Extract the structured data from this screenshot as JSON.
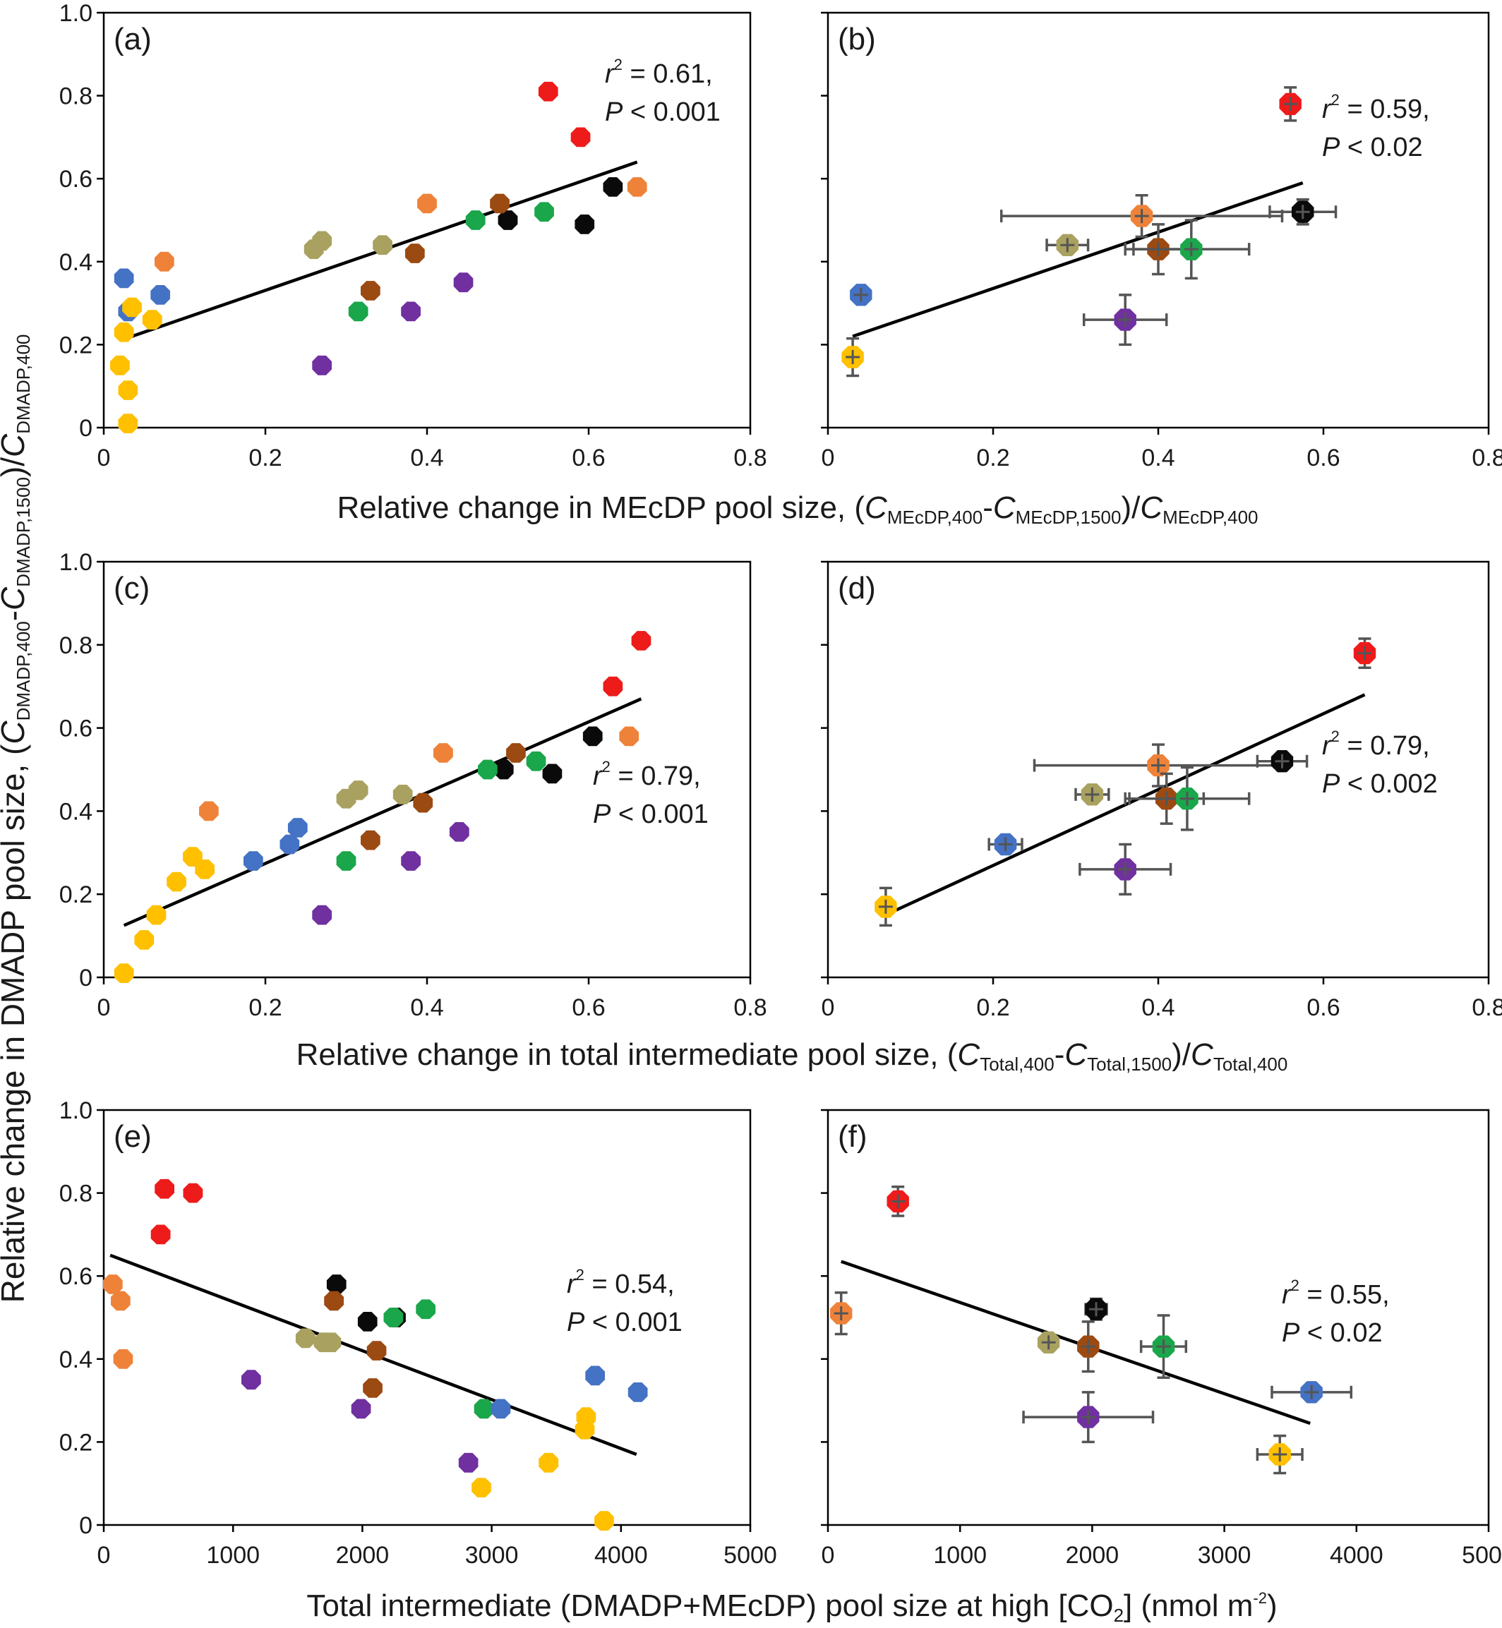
{
  "figure": {
    "y_axis_title": {
      "main": "Relative change in DMADP pool size, (",
      "c": "C",
      "sub1": "DMADP,400",
      "dash": "-",
      "sub2": "DMADP,1500",
      "slash": ")/",
      "sub3": "DMADP,400"
    },
    "x_titles": [
      {
        "main": "Relative change in MEcDP pool size, (",
        "c": "C",
        "sub1": "MEcDP,400",
        "dash": "-",
        "sub2": "MEcDP,1500",
        "slash": ")/",
        "sub3": "MEcDP,400"
      },
      {
        "main": "Relative change in total intermediate pool size, (",
        "c": "C",
        "sub1": "Total,400",
        "dash": "-",
        "sub2": "Total,1500",
        "slash": ")/",
        "sub3": "Total,400"
      },
      {
        "main": "Total intermediate (DMADP+MEcDP) pool size at high [CO",
        "sub1": "2",
        "close": "] (nmol m",
        "sup": "-2",
        "end": ")"
      }
    ],
    "colors": {
      "red": "#ee1b1b",
      "orange": "#ef8239",
      "black": "#0a0a0a",
      "brown": "#9b4a12",
      "green": "#1aa64a",
      "tan": "#a9a160",
      "blue": "#4472c4",
      "purple": "#7030a0",
      "yellow": "#ffc000",
      "errorbar": "#555555",
      "line": "#000000"
    }
  },
  "chart_data": [
    {
      "panel": "(a)",
      "type": "scatter",
      "stat_r": "r",
      "stat_r_sup": "2",
      "stat_r_rest": " = 0.61,",
      "stat_p": "P",
      "stat_p_rest": " < 0.001",
      "xlim": [
        0,
        0.8
      ],
      "ylim": [
        0,
        1.0
      ],
      "xticks": [
        "0",
        "0.2",
        "0.4",
        "0.6",
        "0.8"
      ],
      "yticks": [
        "0",
        "0.2",
        "0.4",
        "0.6",
        "0.8",
        "1.0"
      ],
      "fit": [
        [
          0.02,
          0.21
        ],
        [
          0.66,
          0.64
        ]
      ],
      "points": [
        [
          0.55,
          0.81,
          "red"
        ],
        [
          0.59,
          0.7,
          "red"
        ],
        [
          0.4,
          0.54,
          "orange"
        ],
        [
          0.66,
          0.58,
          "orange"
        ],
        [
          0.075,
          0.4,
          "orange"
        ],
        [
          0.63,
          0.58,
          "black"
        ],
        [
          0.5,
          0.5,
          "black"
        ],
        [
          0.595,
          0.49,
          "black"
        ],
        [
          0.49,
          0.54,
          "brown"
        ],
        [
          0.385,
          0.42,
          "brown"
        ],
        [
          0.33,
          0.33,
          "brown"
        ],
        [
          0.46,
          0.5,
          "green"
        ],
        [
          0.545,
          0.52,
          "green"
        ],
        [
          0.315,
          0.28,
          "green"
        ],
        [
          0.26,
          0.43,
          "tan"
        ],
        [
          0.27,
          0.45,
          "tan"
        ],
        [
          0.345,
          0.44,
          "tan"
        ],
        [
          0.025,
          0.36,
          "blue"
        ],
        [
          0.07,
          0.32,
          "blue"
        ],
        [
          0.03,
          0.28,
          "blue"
        ],
        [
          0.445,
          0.35,
          "purple"
        ],
        [
          0.38,
          0.28,
          "purple"
        ],
        [
          0.27,
          0.15,
          "purple"
        ],
        [
          0.035,
          0.29,
          "yellow"
        ],
        [
          0.06,
          0.26,
          "yellow"
        ],
        [
          0.025,
          0.23,
          "yellow"
        ],
        [
          0.02,
          0.15,
          "yellow"
        ],
        [
          0.03,
          0.09,
          "yellow"
        ],
        [
          0.03,
          0.01,
          "yellow"
        ]
      ]
    },
    {
      "panel": "(b)",
      "type": "scatter",
      "stat_r": "r",
      "stat_r_sup": "2",
      "stat_r_rest": " = 0.59,",
      "stat_p": "P",
      "stat_p_rest": " < 0.02",
      "xlim": [
        0,
        0.8
      ],
      "ylim": [
        0,
        1.0
      ],
      "xticks": [
        "0",
        "0.2",
        "0.4",
        "0.6",
        "0.8"
      ],
      "yticks": [],
      "fit": [
        [
          0.03,
          0.22
        ],
        [
          0.575,
          0.59
        ]
      ],
      "points": [
        [
          0.56,
          0.78,
          "red",
          0.01,
          0.04
        ],
        [
          0.38,
          0.51,
          "orange",
          0.17,
          0.05
        ],
        [
          0.575,
          0.52,
          "black",
          0.04,
          0.03
        ],
        [
          0.4,
          0.43,
          "brown",
          0.04,
          0.06
        ],
        [
          0.44,
          0.43,
          "green",
          0.07,
          0.07
        ],
        [
          0.29,
          0.44,
          "tan",
          0.025,
          0.02
        ],
        [
          0.04,
          0.32,
          "blue",
          0.01,
          0.02
        ],
        [
          0.36,
          0.26,
          "purple",
          0.05,
          0.06
        ],
        [
          0.03,
          0.17,
          "yellow",
          0.01,
          0.045
        ]
      ]
    },
    {
      "panel": "(c)",
      "type": "scatter",
      "stat_r": "r",
      "stat_r_sup": "2",
      "stat_r_rest": " = 0.79,",
      "stat_p": "P",
      "stat_p_rest": " < 0.001",
      "xlim": [
        0,
        0.8
      ],
      "ylim": [
        0,
        1.0
      ],
      "xticks": [
        "0",
        "0.2",
        "0.4",
        "0.6",
        "0.8"
      ],
      "yticks": [
        "0",
        "0.2",
        "0.4",
        "0.6",
        "0.8",
        "1.0"
      ],
      "fit": [
        [
          0.025,
          0.125
        ],
        [
          0.665,
          0.67
        ]
      ],
      "points": [
        [
          0.665,
          0.81,
          "red"
        ],
        [
          0.63,
          0.7,
          "red"
        ],
        [
          0.42,
          0.54,
          "orange"
        ],
        [
          0.65,
          0.58,
          "orange"
        ],
        [
          0.13,
          0.4,
          "orange"
        ],
        [
          0.605,
          0.58,
          "black"
        ],
        [
          0.495,
          0.5,
          "black"
        ],
        [
          0.555,
          0.49,
          "black"
        ],
        [
          0.51,
          0.54,
          "brown"
        ],
        [
          0.395,
          0.42,
          "brown"
        ],
        [
          0.33,
          0.33,
          "brown"
        ],
        [
          0.475,
          0.5,
          "green"
        ],
        [
          0.535,
          0.52,
          "green"
        ],
        [
          0.3,
          0.28,
          "green"
        ],
        [
          0.3,
          0.43,
          "tan"
        ],
        [
          0.315,
          0.45,
          "tan"
        ],
        [
          0.37,
          0.44,
          "tan"
        ],
        [
          0.24,
          0.36,
          "blue"
        ],
        [
          0.23,
          0.32,
          "blue"
        ],
        [
          0.185,
          0.28,
          "blue"
        ],
        [
          0.44,
          0.35,
          "purple"
        ],
        [
          0.38,
          0.28,
          "purple"
        ],
        [
          0.27,
          0.15,
          "purple"
        ],
        [
          0.11,
          0.29,
          "yellow"
        ],
        [
          0.125,
          0.26,
          "yellow"
        ],
        [
          0.09,
          0.23,
          "yellow"
        ],
        [
          0.065,
          0.15,
          "yellow"
        ],
        [
          0.05,
          0.09,
          "yellow"
        ],
        [
          0.025,
          0.01,
          "yellow"
        ]
      ]
    },
    {
      "panel": "(d)",
      "type": "scatter",
      "stat_r": "r",
      "stat_r_sup": "2",
      "stat_r_rest": " = 0.79,",
      "stat_p": "P",
      "stat_p_rest": " < 0.002",
      "xlim": [
        0,
        0.8
      ],
      "ylim": [
        0,
        1.0
      ],
      "xticks": [
        "0",
        "0.2",
        "0.4",
        "0.6",
        "0.8"
      ],
      "yticks": [],
      "fit": [
        [
          0.075,
          0.155
        ],
        [
          0.65,
          0.68
        ]
      ],
      "points": [
        [
          0.65,
          0.78,
          "red",
          0.01,
          0.035
        ],
        [
          0.4,
          0.51,
          "orange",
          0.15,
          0.05
        ],
        [
          0.55,
          0.52,
          "black",
          0.03,
          0.02
        ],
        [
          0.41,
          0.43,
          "brown",
          0.045,
          0.06
        ],
        [
          0.435,
          0.43,
          "green",
          0.075,
          0.075
        ],
        [
          0.32,
          0.44,
          "tan",
          0.02,
          0.02
        ],
        [
          0.215,
          0.32,
          "blue",
          0.02,
          0.02
        ],
        [
          0.36,
          0.26,
          "purple",
          0.055,
          0.06
        ],
        [
          0.07,
          0.17,
          "yellow",
          0.01,
          0.045
        ]
      ]
    },
    {
      "panel": "(e)",
      "type": "scatter",
      "stat_r": "r",
      "stat_r_sup": "2",
      "stat_r_rest": " = 0.54,",
      "stat_p": "P",
      "stat_p_rest": " < 0.001",
      "xlim": [
        0,
        5000
      ],
      "ylim": [
        0,
        1.0
      ],
      "xticks": [
        "0",
        "1000",
        "2000",
        "3000",
        "4000",
        "5000"
      ],
      "yticks": [
        "0",
        "0.2",
        "0.4",
        "0.6",
        "0.8",
        "1.0"
      ],
      "fit": [
        [
          50,
          0.65
        ],
        [
          4120,
          0.17
        ]
      ],
      "points": [
        [
          470,
          0.81,
          "red"
        ],
        [
          690,
          0.8,
          "red"
        ],
        [
          440,
          0.7,
          "red"
        ],
        [
          70,
          0.58,
          "orange"
        ],
        [
          130,
          0.54,
          "orange"
        ],
        [
          150,
          0.4,
          "orange"
        ],
        [
          1800,
          0.58,
          "black"
        ],
        [
          2040,
          0.49,
          "black"
        ],
        [
          2260,
          0.5,
          "black"
        ],
        [
          1780,
          0.54,
          "brown"
        ],
        [
          2110,
          0.42,
          "brown"
        ],
        [
          2080,
          0.33,
          "brown"
        ],
        [
          2240,
          0.5,
          "green"
        ],
        [
          2490,
          0.52,
          "green"
        ],
        [
          2940,
          0.28,
          "green"
        ],
        [
          1560,
          0.45,
          "tan"
        ],
        [
          1700,
          0.44,
          "tan"
        ],
        [
          1760,
          0.44,
          "tan"
        ],
        [
          3800,
          0.36,
          "blue"
        ],
        [
          4130,
          0.32,
          "blue"
        ],
        [
          3070,
          0.28,
          "blue"
        ],
        [
          1140,
          0.35,
          "purple"
        ],
        [
          1990,
          0.28,
          "purple"
        ],
        [
          2820,
          0.15,
          "purple"
        ],
        [
          3730,
          0.26,
          "yellow"
        ],
        [
          3720,
          0.23,
          "yellow"
        ],
        [
          3440,
          0.15,
          "yellow"
        ],
        [
          2920,
          0.09,
          "yellow"
        ],
        [
          3870,
          0.01,
          "yellow"
        ]
      ]
    },
    {
      "panel": "(f)",
      "type": "scatter",
      "stat_r": "r",
      "stat_r_sup": "2",
      "stat_r_rest": " = 0.55,",
      "stat_p": "P",
      "stat_p_rest": " < 0.02",
      "xlim": [
        0,
        5000
      ],
      "ylim": [
        0,
        1.0
      ],
      "xticks": [
        "0",
        "1000",
        "2000",
        "3000",
        "4000",
        "5000"
      ],
      "yticks": [],
      "fit": [
        [
          100,
          0.635
        ],
        [
          3650,
          0.245
        ]
      ],
      "points": [
        [
          530,
          0.78,
          "red",
          20,
          0.035
        ],
        [
          100,
          0.51,
          "orange",
          20,
          0.05
        ],
        [
          2030,
          0.52,
          "black",
          80,
          0.025
        ],
        [
          1970,
          0.43,
          "brown",
          50,
          0.06
        ],
        [
          2540,
          0.43,
          "green",
          170,
          0.075
        ],
        [
          1670,
          0.44,
          "tan",
          50,
          0.02
        ],
        [
          3660,
          0.32,
          "blue",
          300,
          0.02
        ],
        [
          1970,
          0.26,
          "purple",
          490,
          0.06
        ],
        [
          3420,
          0.17,
          "yellow",
          170,
          0.045
        ]
      ]
    }
  ]
}
